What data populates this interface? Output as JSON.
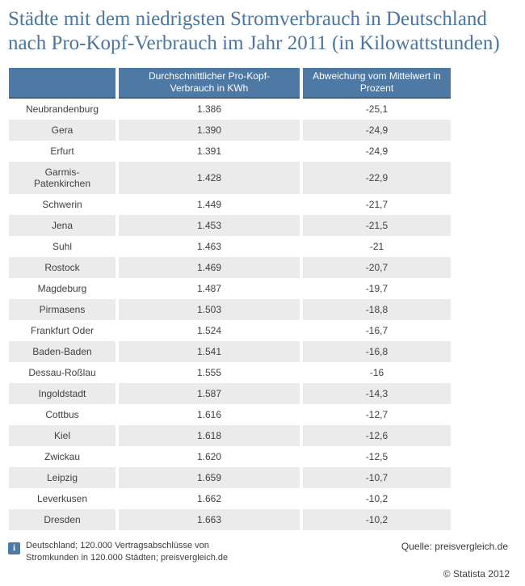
{
  "title": {
    "line1": "Städte mit dem niedrigsten Stromverbrauch in Deutschland",
    "line2": "nach Pro-Kopf-Verbrauch im Jahr 2011 (in Kilowattstunden)"
  },
  "colors": {
    "header_blue": "#4d79a4",
    "header_border_blue": "#3a6186",
    "stripe_gray": "#ebebeb",
    "title_blue": "#4a76a0",
    "body_text": "#404040"
  },
  "table": {
    "headers": [
      "",
      "Durchschnittlicher Pro-Kopf-\nVerbrauch in KWh",
      "Abweichung vom Mittelwert in\nProzent"
    ],
    "rows": [
      {
        "city": "Neubrandenburg",
        "consumption": "1.386",
        "deviation": "-25,1"
      },
      {
        "city": "Gera",
        "consumption": "1.390",
        "deviation": "-24,9"
      },
      {
        "city": "Erfurt",
        "consumption": "1.391",
        "deviation": "-24,9"
      },
      {
        "city": "Garmis-\nPatenkirchen",
        "consumption": "1.428",
        "deviation": "-22,9",
        "tall": true
      },
      {
        "city": "Schwerin",
        "consumption": "1.449",
        "deviation": "-21,7"
      },
      {
        "city": "Jena",
        "consumption": "1.453",
        "deviation": "-21,5"
      },
      {
        "city": "Suhl",
        "consumption": "1.463",
        "deviation": "-21"
      },
      {
        "city": "Rostock",
        "consumption": "1.469",
        "deviation": "-20,7"
      },
      {
        "city": "Magdeburg",
        "consumption": "1.487",
        "deviation": "-19,7"
      },
      {
        "city": "Pirmasens",
        "consumption": "1.503",
        "deviation": "-18,8"
      },
      {
        "city": "Frankfurt Oder",
        "consumption": "1.524",
        "deviation": "-16,7"
      },
      {
        "city": "Baden-Baden",
        "consumption": "1.541",
        "deviation": "-16,8"
      },
      {
        "city": "Dessau-Roßlau",
        "consumption": "1.555",
        "deviation": "-16"
      },
      {
        "city": "Ingoldstadt",
        "consumption": "1.587",
        "deviation": "-14,3"
      },
      {
        "city": "Cottbus",
        "consumption": "1.616",
        "deviation": "-12,7"
      },
      {
        "city": "Kiel",
        "consumption": "1.618",
        "deviation": "-12,6"
      },
      {
        "city": "Zwickau",
        "consumption": "1.620",
        "deviation": "-12,5"
      },
      {
        "city": "Leipzig",
        "consumption": "1.659",
        "deviation": "-10,7"
      },
      {
        "city": "Leverkusen",
        "consumption": "1.662",
        "deviation": "-10,2"
      },
      {
        "city": "Dresden",
        "consumption": "1.663",
        "deviation": "-10,2"
      }
    ]
  },
  "footer": {
    "info_icon_label": "i",
    "note": "Deutschland; 120.000 Vertragsabschlüsse von\nStromkunden in 120.000 Städten; preisvergleich.de",
    "source": "Quelle: preisvergleich.de",
    "copyright": "© Statista 2012"
  },
  "chart_data": {
    "type": "table",
    "title": "Städte mit dem niedrigsten Stromverbrauch in Deutschland nach Pro-Kopf-Verbrauch im Jahr 2011 (in Kilowattstunden)",
    "categories": [
      "Neubrandenburg",
      "Gera",
      "Erfurt",
      "Garmis-Patenkirchen",
      "Schwerin",
      "Jena",
      "Suhl",
      "Rostock",
      "Magdeburg",
      "Pirmasens",
      "Frankfurt Oder",
      "Baden-Baden",
      "Dessau-Roßlau",
      "Ingoldstadt",
      "Cottbus",
      "Kiel",
      "Zwickau",
      "Leipzig",
      "Leverkusen",
      "Dresden"
    ],
    "series": [
      {
        "name": "Durchschnittlicher Pro-Kopf-Verbrauch in KWh",
        "values": [
          1386,
          1390,
          1391,
          1428,
          1449,
          1453,
          1463,
          1469,
          1487,
          1503,
          1524,
          1541,
          1555,
          1587,
          1616,
          1618,
          1620,
          1659,
          1662,
          1663
        ]
      },
      {
        "name": "Abweichung vom Mittelwert in Prozent",
        "values": [
          -25.1,
          -24.9,
          -24.9,
          -22.9,
          -21.7,
          -21.5,
          -21,
          -20.7,
          -19.7,
          -18.8,
          -16.7,
          -16.8,
          -16,
          -14.3,
          -12.7,
          -12.6,
          -12.5,
          -10.7,
          -10.2,
          -10.2
        ]
      }
    ]
  }
}
